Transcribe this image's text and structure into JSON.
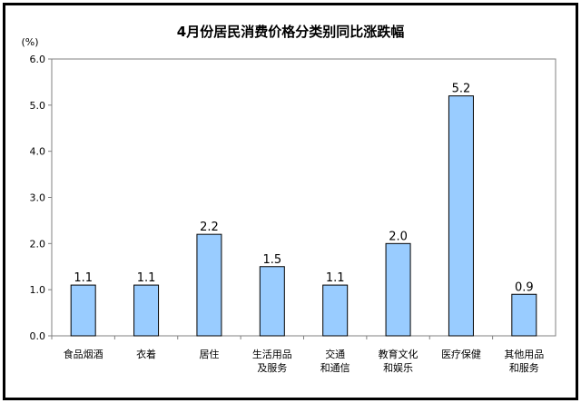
{
  "chart_data": {
    "type": "bar",
    "title": "4月份居民消费价格分类别同比涨跌幅",
    "unit": "(%)",
    "categories": [
      [
        "食品烟酒"
      ],
      [
        "衣着"
      ],
      [
        "居住"
      ],
      [
        "生活用品",
        "及服务"
      ],
      [
        "交通",
        "和通信"
      ],
      [
        "教育文化",
        "和娱乐"
      ],
      [
        "医疗保健"
      ],
      [
        "其他用品",
        "和服务"
      ]
    ],
    "values": [
      1.1,
      1.1,
      2.2,
      1.5,
      1.1,
      2.0,
      5.2,
      0.9
    ],
    "value_labels": [
      "1.1",
      "1.1",
      "2.2",
      "1.5",
      "1.1",
      "2.0",
      "5.2",
      "0.9"
    ],
    "ylim": [
      0,
      6
    ],
    "yticks": [
      "0.0",
      "1.0",
      "2.0",
      "3.0",
      "4.0",
      "5.0",
      "6.0"
    ],
    "grid": false,
    "colors": {
      "bar_fill": "#99ccff",
      "bar_stroke": "#000000",
      "axis": "#808080"
    }
  }
}
